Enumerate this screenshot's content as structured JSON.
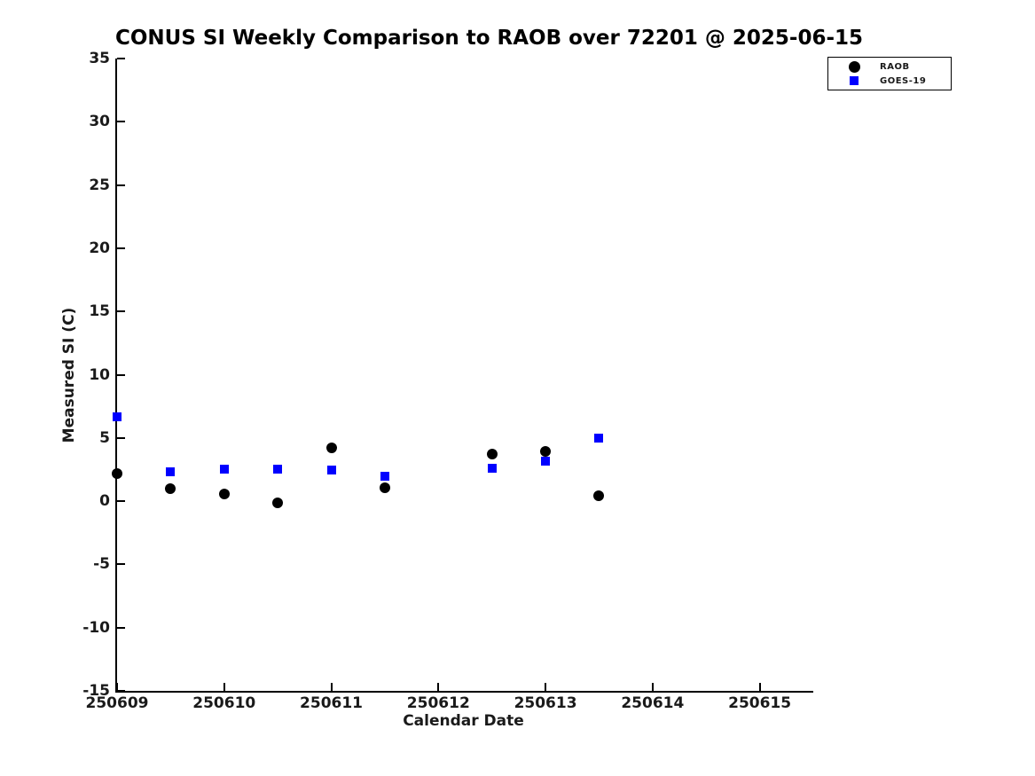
{
  "title": "CONUS SI Weekly Comparison to RAOB over 72201 @ 2025-06-15",
  "chart_data": {
    "type": "scatter",
    "title": "CONUS SI Weekly Comparison to RAOB over 72201 @ 2025-06-15",
    "xlabel": "Calendar Date",
    "ylabel": "Measured SI (C)",
    "xlim": [
      250609,
      250615.5
    ],
    "ylim": [
      -15,
      35
    ],
    "xticks": [
      250609,
      250610,
      250611,
      250612,
      250613,
      250614,
      250615
    ],
    "yticks": [
      -15,
      -10,
      -5,
      0,
      5,
      10,
      15,
      20,
      25,
      30,
      35
    ],
    "grid": false,
    "legend_position": "upper-right-outside",
    "tick_direction": "in",
    "series": [
      {
        "name": "RAOB",
        "marker": "circle",
        "color": "#000000",
        "points": [
          [
            250609.0,
            2.2
          ],
          [
            250609.5,
            1.0
          ],
          [
            250610.0,
            0.55
          ],
          [
            250610.5,
            -0.15
          ],
          [
            250611.0,
            4.2
          ],
          [
            250611.5,
            1.05
          ],
          [
            250612.5,
            3.7
          ],
          [
            250613.0,
            3.95
          ],
          [
            250613.5,
            0.45
          ]
        ]
      },
      {
        "name": "GOES-19",
        "marker": "square",
        "color": "#0000ff",
        "points": [
          [
            250609.0,
            6.7
          ],
          [
            250609.5,
            2.35
          ],
          [
            250610.0,
            2.5
          ],
          [
            250610.5,
            2.55
          ],
          [
            250611.0,
            2.45
          ],
          [
            250611.5,
            1.95
          ],
          [
            250612.5,
            2.6
          ],
          [
            250613.0,
            3.15
          ],
          [
            250613.5,
            5.0
          ]
        ]
      }
    ]
  }
}
